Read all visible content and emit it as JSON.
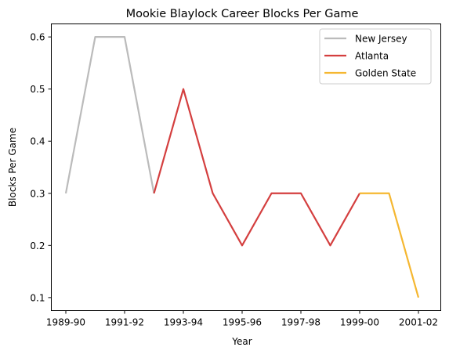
{
  "chart_data": {
    "type": "line",
    "title": "Mookie Blaylock Career Blocks Per Game",
    "xlabel": "Year",
    "ylabel": "Blocks Per Game",
    "x": [
      "1989-90",
      "1990-91",
      "1991-92",
      "1992-93",
      "1993-94",
      "1994-95",
      "1995-96",
      "1996-97",
      "1997-98",
      "1998-99",
      "1999-00",
      "2000-01",
      "2001-02"
    ],
    "x_tick_labels": [
      "1989-90",
      "1991-92",
      "1993-94",
      "1995-96",
      "1997-98",
      "1999-00",
      "2001-02"
    ],
    "y_ticks": [
      0.1,
      0.2,
      0.3,
      0.4,
      0.5,
      0.6
    ],
    "y_tick_labels": [
      "0.1",
      "0.2",
      "0.3",
      "0.4",
      "0.5",
      "0.6"
    ],
    "ylim": [
      0.075,
      0.625
    ],
    "grid": false,
    "legend_position": "top-right",
    "series": [
      {
        "name": "New Jersey",
        "color": "#bbbbbb",
        "x": [
          "1989-90",
          "1990-91",
          "1991-92",
          "1992-93"
        ],
        "values": [
          0.3,
          0.6,
          0.6,
          0.3
        ]
      },
      {
        "name": "Atlanta",
        "color": "#d43f3f",
        "x": [
          "1992-93",
          "1993-94",
          "1994-95",
          "1995-96",
          "1996-97",
          "1997-98",
          "1998-99",
          "1999-00"
        ],
        "values": [
          0.3,
          0.5,
          0.3,
          0.2,
          0.3,
          0.3,
          0.2,
          0.3
        ]
      },
      {
        "name": "Golden State",
        "color": "#f5b731",
        "x": [
          "1999-00",
          "2000-01",
          "2001-02"
        ],
        "values": [
          0.3,
          0.3,
          0.1
        ]
      }
    ]
  }
}
